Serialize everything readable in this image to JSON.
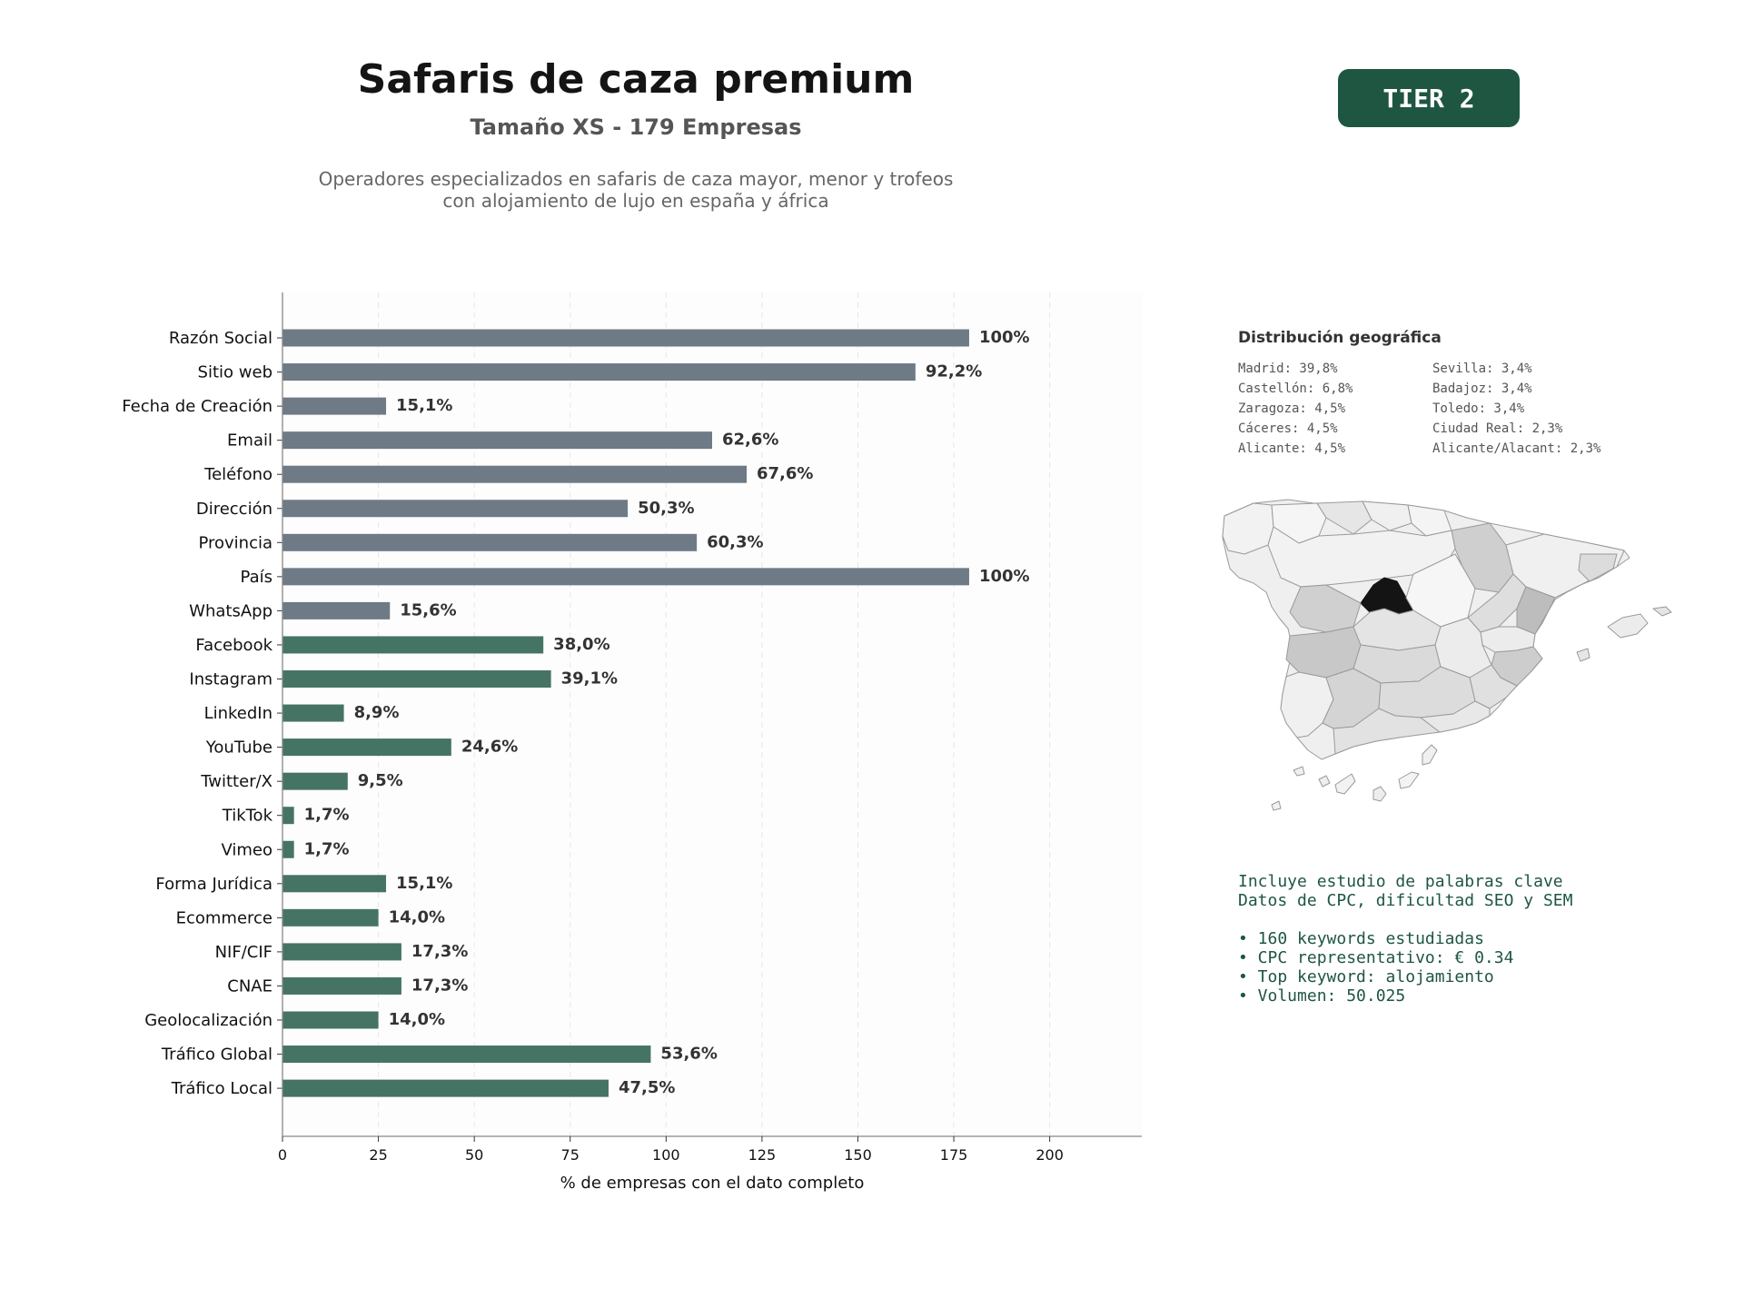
{
  "header": {
    "title": "Safaris de caza premium",
    "subtitle": "Tamaño XS - 179 Empresas",
    "description_line1": "Operadores especializados en safaris de caza mayor, menor y trofeos",
    "description_line2": "con alojamiento de lujo en españa y áfrica"
  },
  "badge": {
    "label": "TIER 2",
    "color": "#1e5642"
  },
  "chart_data": {
    "type": "bar",
    "orientation": "horizontal",
    "xlabel": "% de empresas con el dato completo",
    "xlim": [
      0,
      224
    ],
    "xticks": [
      0,
      25,
      50,
      75,
      100,
      125,
      150,
      175,
      200
    ],
    "grid": true,
    "categories": [
      "Razón Social",
      "Sitio web",
      "Fecha de Creación",
      "Email",
      "Teléfono",
      "Dirección",
      "Provincia",
      "País",
      "WhatsApp",
      "Facebook",
      "Instagram",
      "LinkedIn",
      "YouTube",
      "Twitter/X",
      "TikTok",
      "Vimeo",
      "Forma Jurídica",
      "Ecommerce",
      "NIF/CIF",
      "CNAE",
      "Geolocalización",
      "Tráfico Global",
      "Tráfico Local"
    ],
    "values": [
      179,
      165,
      27,
      112,
      121,
      90,
      108,
      179,
      28,
      68,
      70,
      16,
      44,
      17,
      3,
      3,
      27,
      25,
      31,
      31,
      25,
      96,
      85
    ],
    "labels": [
      "100%",
      "92,2%",
      "15,1%",
      "62,6%",
      "67,6%",
      "50,3%",
      "60,3%",
      "100%",
      "15,6%",
      "38,0%",
      "39,1%",
      "8,9%",
      "24,6%",
      "9,5%",
      "1,7%",
      "1,7%",
      "15,1%",
      "14,0%",
      "17,3%",
      "17,3%",
      "14,0%",
      "53,6%",
      "47,5%"
    ],
    "groups": [
      0,
      0,
      0,
      0,
      0,
      0,
      0,
      0,
      0,
      1,
      1,
      1,
      1,
      1,
      1,
      1,
      1,
      1,
      1,
      1,
      1,
      1,
      1
    ],
    "colors": [
      "#6e7a85",
      "#467464"
    ]
  },
  "geo": {
    "title": "Distribución geográfica",
    "items": [
      "Madrid: 39,8%",
      "Sevilla: 3,4%",
      "Castellón: 6,8%",
      "Badajoz: 3,4%",
      "Zaragoza: 4,5%",
      "Toledo: 3,4%",
      "Cáceres: 4,5%",
      "Ciudad Real: 2,3%",
      "Alicante: 4,5%",
      "Alicante/Alacant: 2,3%"
    ]
  },
  "keywords": {
    "line1": "Incluye estudio de palabras clave",
    "line2": "Datos de CPC, dificultad SEO y SEM",
    "bullet1": "• 160 keywords estudiadas",
    "bullet2": "• CPC representativo: € 0.34",
    "bullet3": "• Top keyword: alojamiento",
    "bullet4": "• Volumen: 50.025"
  }
}
